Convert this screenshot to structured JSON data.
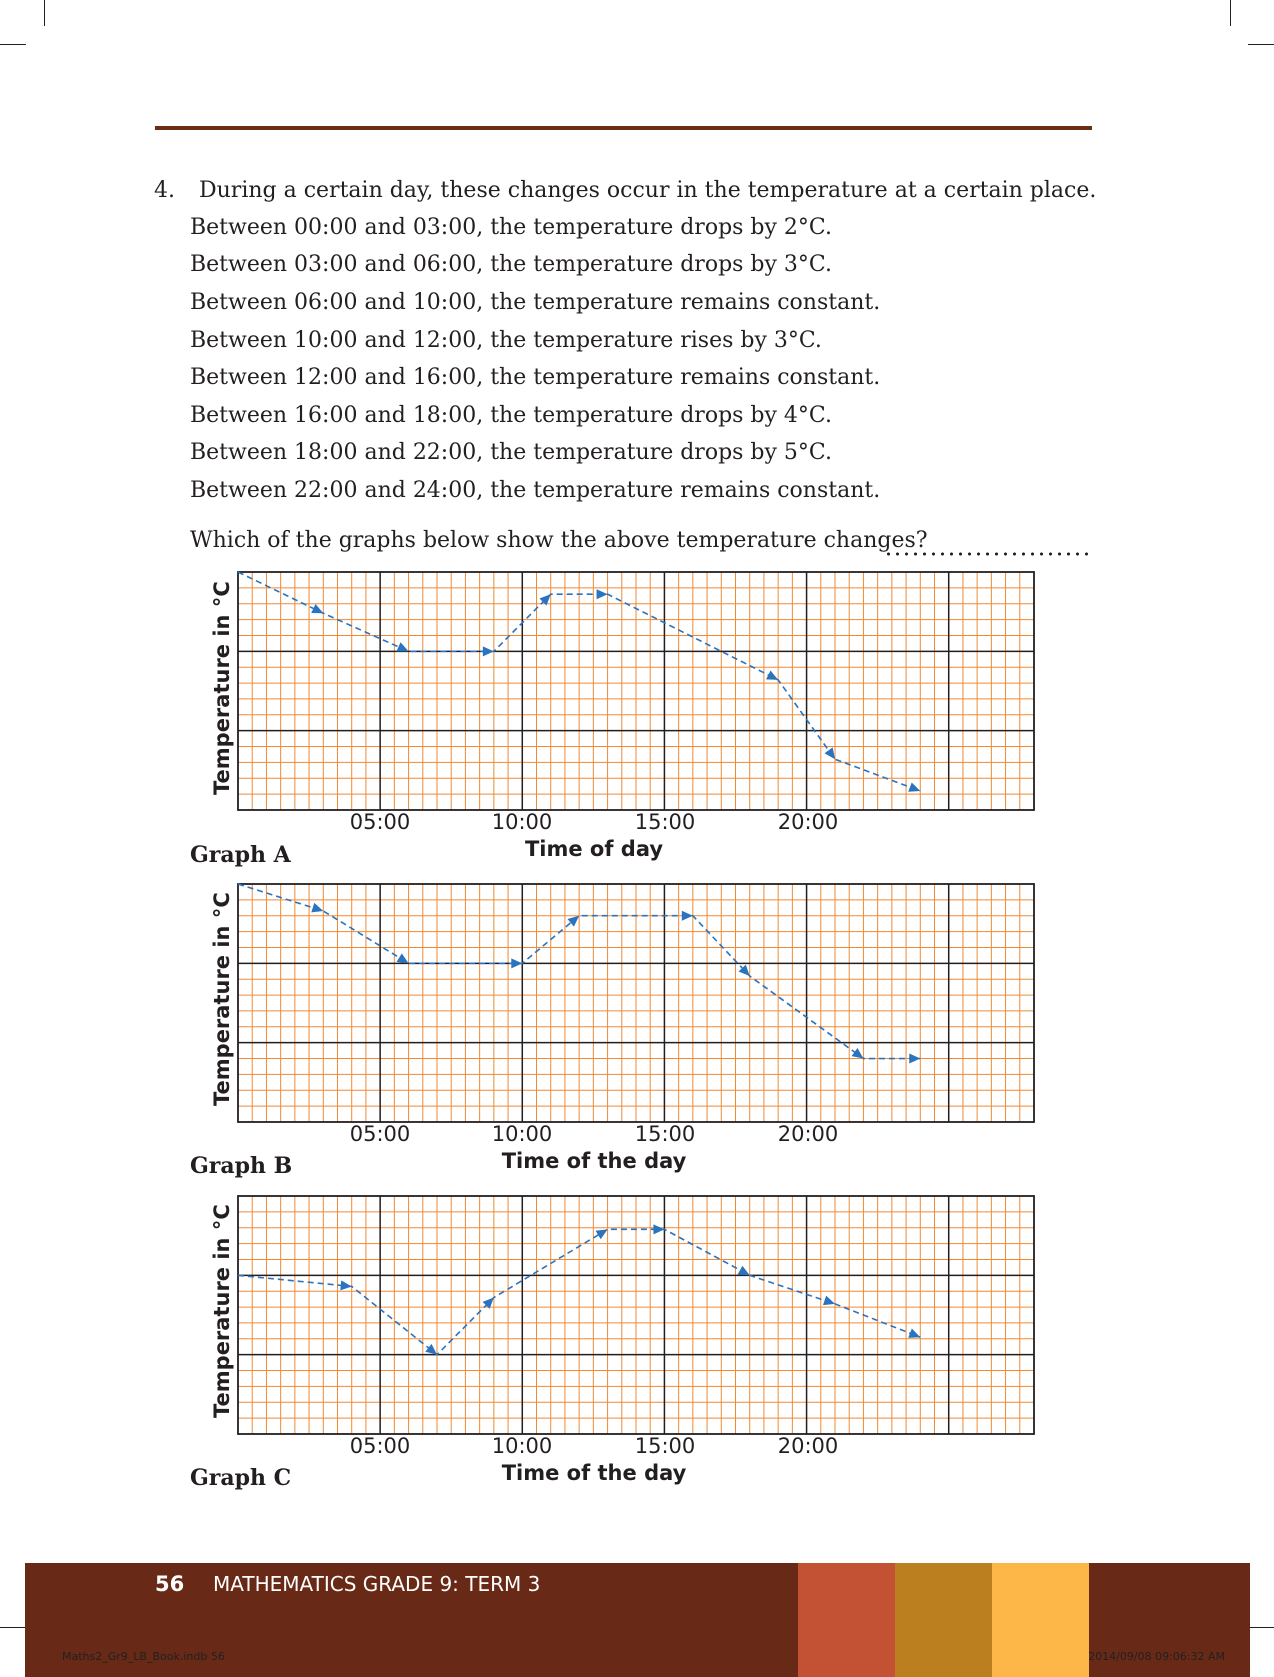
{
  "question": {
    "number": "4.",
    "intro": "During a certain day, these changes occur in the temperature at a certain place.",
    "statements": [
      "Between 00:00 and 03:00, the temperature drops by 2°C.",
      "Between 03:00 and 06:00, the temperature drops by 3°C.",
      "Between 06:00 and 10:00, the temperature remains constant.",
      "Between 10:00 and 12:00, the temperature rises by 3°C.",
      "Between 12:00 and 16:00, the temperature remains constant.",
      "Between 16:00 and 18:00, the temperature drops by 4°C.",
      "Between 18:00 and 22:00, the temperature drops by 5°C.",
      "Between 22:00 and 24:00, the temperature remains constant."
    ],
    "prompt": "Which of the graphs below show the above temperature changes?"
  },
  "chart_data": [
    {
      "type": "line",
      "name": "Graph A",
      "ylabel": "Temperature in °C",
      "xlabel": "Time of day",
      "x_ticks": [
        "05:00",
        "10:00",
        "15:00",
        "20:00"
      ],
      "xlim": [
        0,
        28
      ],
      "ylim": [
        0,
        15
      ],
      "grid": true,
      "x": [
        0,
        3,
        6,
        9,
        11,
        13,
        19,
        21,
        24
      ],
      "y": [
        15,
        12.4,
        10,
        10,
        13.6,
        13.6,
        8.2,
        3.2,
        1.2
      ]
    },
    {
      "type": "line",
      "name": "Graph B",
      "ylabel": "Temperature in °C",
      "xlabel": "Time of the day",
      "x_ticks": [
        "05:00",
        "10:00",
        "15:00",
        "20:00"
      ],
      "xlim": [
        0,
        28
      ],
      "ylim": [
        0,
        15
      ],
      "grid": true,
      "x": [
        0,
        3,
        6,
        10,
        12,
        16,
        18,
        22,
        24
      ],
      "y": [
        15,
        13.3,
        10,
        10,
        13,
        13,
        9.2,
        4,
        4
      ]
    },
    {
      "type": "line",
      "name": "Graph C",
      "ylabel": "Temperature in °C",
      "xlabel": "Time of the day",
      "x_ticks": [
        "05:00",
        "10:00",
        "15:00",
        "20:00"
      ],
      "xlim": [
        0,
        28
      ],
      "ylim": [
        0,
        15
      ],
      "grid": true,
      "x": [
        0,
        4,
        7,
        9,
        13,
        15,
        18,
        21,
        24
      ],
      "y": [
        10,
        9.3,
        5,
        8.6,
        12.9,
        12.9,
        10,
        8.2,
        6.1
      ]
    }
  ],
  "footer": {
    "page_number": "56",
    "title": "MATHEMATICS GRADE 9: TERM 3",
    "colors": [
      "#682a16",
      "#c35134",
      "#bc7f1f",
      "#fcb748"
    ],
    "slug_left": "Maths2_Gr9_LB_Book.indb   56",
    "slug_right": "2014/09/08   09:06:32 AM"
  },
  "colors": {
    "grid_minor": "#f08a36",
    "grid_major": "#231f20",
    "line": "#2a73bf",
    "rule": "#6b2d14"
  }
}
